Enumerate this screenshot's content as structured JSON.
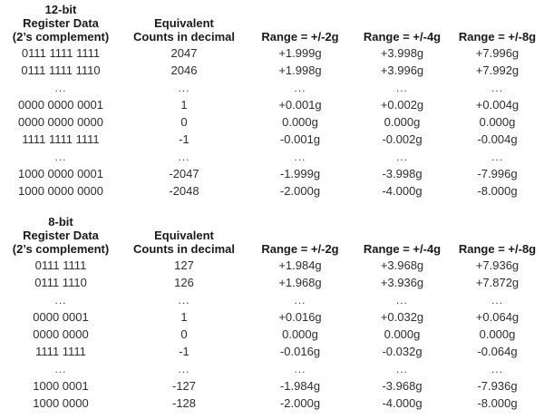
{
  "page": {
    "background": "#ffffff",
    "text_color": "#2e2e2e",
    "header_color": "#1a1a1a"
  },
  "tables": [
    {
      "id": "register-table-12bit",
      "headers": [
        {
          "lines": [
            "12-bit",
            "Register Data",
            "(2’s complement)"
          ]
        },
        {
          "lines": [
            "Equivalent",
            "Counts in decimal"
          ]
        },
        {
          "lines": [
            "Range = +/-2g"
          ]
        },
        {
          "lines": [
            "Range = +/-4g"
          ]
        },
        {
          "lines": [
            "Range = +/-8g"
          ]
        }
      ],
      "rows": [
        [
          "0111 1111 1111",
          "2047",
          "+1.999g",
          "+3.998g",
          "+7.996g"
        ],
        [
          "0111 1111 1110",
          "2046",
          "+1.998g",
          "+3.996g",
          "+7.992g"
        ],
        [
          "...",
          "...",
          "...",
          "...",
          "..."
        ],
        [
          "0000 0000 0001",
          "1",
          "+0.001g",
          "+0.002g",
          "+0.004g"
        ],
        [
          "0000 0000 0000",
          "0",
          "0.000g",
          "0.000g",
          "0.000g"
        ],
        [
          "1111 1111 1111",
          "-1",
          "-0.001g",
          "-0.002g",
          "-0.004g"
        ],
        [
          "...",
          "...",
          "...",
          "...",
          "..."
        ],
        [
          "1000 0000 0001",
          "-2047",
          "-1.999g",
          "-3.998g",
          "-7.996g"
        ],
        [
          "1000 0000 0000",
          "-2048",
          "-2.000g",
          "-4.000g",
          "-8.000g"
        ]
      ]
    },
    {
      "id": "register-table-8bit",
      "headers": [
        {
          "lines": [
            "8-bit",
            "Register Data",
            "(2’s complement)"
          ]
        },
        {
          "lines": [
            "Equivalent",
            "Counts in decimal"
          ]
        },
        {
          "lines": [
            "Range = +/-2g"
          ]
        },
        {
          "lines": [
            "Range = +/-4g"
          ]
        },
        {
          "lines": [
            "Range = +/-8g"
          ]
        }
      ],
      "rows": [
        [
          "0111 1111",
          "127",
          "+1.984g",
          "+3.968g",
          "+7.936g"
        ],
        [
          "0111 1110",
          "126",
          "+1.968g",
          "+3.936g",
          "+7.872g"
        ],
        [
          "...",
          "...",
          "...",
          "...",
          "..."
        ],
        [
          "0000 0001",
          "1",
          "+0.016g",
          "+0.032g",
          "+0.064g"
        ],
        [
          "0000 0000",
          "0",
          "0.000g",
          "0.000g",
          "0.000g"
        ],
        [
          "1111 1111",
          "-1",
          "-0.016g",
          "-0.032g",
          "-0.064g"
        ],
        [
          "...",
          "...",
          "...",
          "...",
          "..."
        ],
        [
          "1000 0001",
          "-127",
          "-1.984g",
          "-3.968g",
          "-7.936g"
        ],
        [
          "1000 0000",
          "-128",
          "-2.000g",
          "-4.000g",
          "-8.000g"
        ]
      ]
    }
  ]
}
